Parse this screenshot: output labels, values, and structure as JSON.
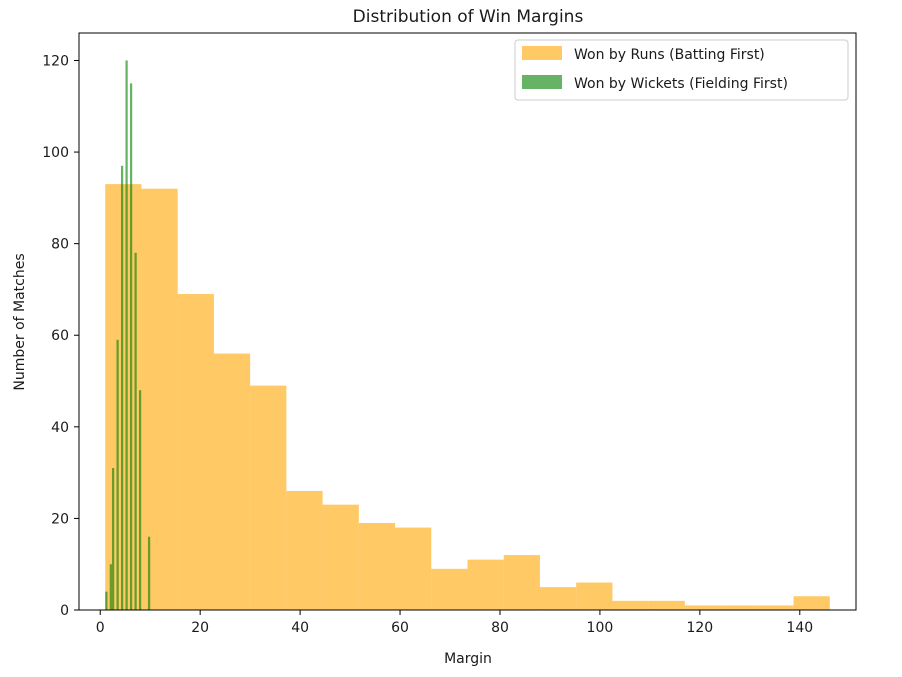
{
  "chart_data": {
    "type": "bar",
    "title": "Distribution of Win Margins",
    "xlabel": "Margin",
    "ylabel": "Number of Matches",
    "xlim": [
      -4.25,
      151.25
    ],
    "ylim": [
      0,
      126
    ],
    "x_ticks": [
      0,
      20,
      40,
      60,
      80,
      100,
      120,
      140
    ],
    "y_ticks": [
      0,
      20,
      40,
      60,
      80,
      100,
      120
    ],
    "grid": false,
    "legend_position": "top-right",
    "series": [
      {
        "name": "Won by Runs (Batting First)",
        "color": "#FFA500",
        "opacity": 0.6,
        "bin_edges": [
          1,
          8.25,
          15.5,
          22.75,
          30,
          37.25,
          44.5,
          51.75,
          59,
          66.25,
          73.5,
          80.75,
          88,
          95.25,
          102.5,
          109.75,
          117,
          124.25,
          131.5,
          138.75,
          146
        ],
        "values": [
          93,
          92,
          69,
          56,
          49,
          26,
          23,
          19,
          18,
          9,
          11,
          12,
          5,
          6,
          2,
          2,
          1,
          1,
          1,
          3
        ]
      },
      {
        "name": "Won by Wickets (Fielding First)",
        "color": "#008000",
        "opacity": 0.6,
        "bin_edges": [
          1,
          1.45,
          1.9,
          2.35,
          2.8,
          3.25,
          3.7,
          4.15,
          4.6,
          5.05,
          5.5,
          5.95,
          6.4,
          6.85,
          7.3,
          7.75,
          8.2,
          8.65,
          9.1,
          9.55,
          10
        ],
        "values": [
          4,
          0,
          10,
          31,
          0,
          59,
          0,
          97,
          0,
          120,
          0,
          115,
          0,
          78,
          0,
          48,
          0,
          0,
          0,
          16
        ]
      }
    ]
  }
}
